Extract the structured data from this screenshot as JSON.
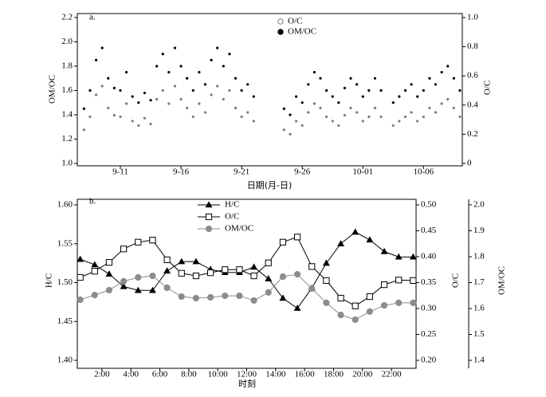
{
  "chart_data": [
    {
      "type": "scatter",
      "panel_label": "a.",
      "xlabel": "日期(月-日)",
      "ylabel": "OM/OC",
      "y2label": "O/C",
      "x": [
        8.0,
        8.5,
        9.0,
        9.5,
        10.0,
        10.5,
        11.0,
        11.5,
        12.0,
        12.5,
        13.0,
        13.5,
        14.0,
        14.5,
        15.0,
        15.5,
        16.0,
        16.5,
        17.0,
        17.5,
        18.0,
        18.5,
        19.0,
        19.5,
        20.0,
        20.5,
        21.0,
        21.5,
        22.0,
        24.5,
        25.0,
        25.5,
        26.0,
        26.5,
        27.0,
        27.5,
        28.0,
        28.5,
        29.0,
        29.5,
        30.0,
        30.5,
        31.0,
        31.5,
        32.0,
        32.5,
        33.5,
        34.0,
        34.5,
        35.0,
        35.5,
        36.0,
        36.5,
        37.0,
        37.5,
        38.0,
        38.5,
        39.0
      ],
      "xlim": [
        7.45,
        39.2
      ],
      "xticks": [
        {
          "value": 11,
          "label": "9-11"
        },
        {
          "value": 16,
          "label": "9-16"
        },
        {
          "value": 21,
          "label": "9-21"
        },
        {
          "value": 26,
          "label": "9-26"
        },
        {
          "value": 31,
          "label": "10-01"
        },
        {
          "value": 36,
          "label": "10-06"
        }
      ],
      "ylim": [
        1.0,
        2.2
      ],
      "yticks": [
        {
          "value": 1.0,
          "label": "1.0"
        },
        1.2,
        1.4,
        1.6,
        1.8,
        {
          "value": 2.0,
          "label": "2.0"
        },
        2.2
      ],
      "y2lim": [
        0,
        1.0
      ],
      "y2ticks": [
        0,
        0.2,
        0.4,
        0.6,
        0.8,
        {
          "value": 1.0,
          "label": "1.0"
        }
      ],
      "series": [
        {
          "name": "O/C",
          "axis": "y2",
          "color": "#7a7a7a",
          "marker": "circle",
          "legend_marker_fill": "none",
          "values": [
            0.23,
            0.32,
            0.47,
            0.53,
            0.38,
            0.33,
            0.32,
            0.41,
            0.29,
            0.26,
            0.31,
            0.27,
            0.44,
            0.5,
            0.41,
            0.53,
            0.44,
            0.38,
            0.32,
            0.41,
            0.35,
            0.47,
            0.53,
            0.44,
            0.5,
            0.38,
            0.32,
            0.35,
            0.29,
            0.23,
            0.2,
            0.29,
            0.26,
            0.35,
            0.41,
            0.38,
            0.32,
            0.29,
            0.26,
            0.33,
            0.38,
            0.35,
            0.29,
            0.32,
            0.38,
            0.32,
            0.26,
            0.29,
            0.32,
            0.35,
            0.29,
            0.32,
            0.38,
            0.35,
            0.41,
            0.44,
            0.38,
            0.32
          ]
        },
        {
          "name": "OM/OC",
          "axis": "y",
          "color": "#000000",
          "marker": "circle",
          "legend_marker_fill": "#000000",
          "values": [
            1.45,
            1.6,
            1.85,
            1.95,
            1.7,
            1.62,
            1.6,
            1.75,
            1.55,
            1.5,
            1.58,
            1.52,
            1.8,
            1.9,
            1.75,
            1.95,
            1.8,
            1.7,
            1.6,
            1.75,
            1.65,
            1.85,
            1.95,
            1.8,
            1.9,
            1.7,
            1.6,
            1.65,
            1.55,
            1.45,
            1.4,
            1.55,
            1.5,
            1.65,
            1.75,
            1.7,
            1.6,
            1.55,
            1.5,
            1.62,
            1.7,
            1.65,
            1.55,
            1.6,
            1.7,
            1.6,
            1.5,
            1.55,
            1.6,
            1.65,
            1.55,
            1.6,
            1.7,
            1.65,
            1.75,
            1.8,
            1.7,
            1.6
          ]
        }
      ]
    },
    {
      "type": "line",
      "panel_label": "b.",
      "xlabel": "时刻",
      "ylabel": "H/C",
      "y2label": "O/C",
      "y3label": "OM/OC",
      "x": [
        0.5,
        1.5,
        2.5,
        3.5,
        4.5,
        5.5,
        6.5,
        7.5,
        8.5,
        9.5,
        10.5,
        11.5,
        12.5,
        13.5,
        14.5,
        15.5,
        16.5,
        17.5,
        18.5,
        19.5,
        20.5,
        21.5,
        22.5,
        23.5
      ],
      "xlim": [
        0.3,
        23.7
      ],
      "xticks": [
        {
          "value": 2,
          "label": "2:00"
        },
        {
          "value": 4,
          "label": "4:00"
        },
        {
          "value": 6,
          "label": "6:00"
        },
        {
          "value": 8,
          "label": "8:00"
        },
        {
          "value": 10,
          "label": "10:00"
        },
        {
          "value": 12,
          "label": "12:00"
        },
        {
          "value": 14,
          "label": "14:00"
        },
        {
          "value": 16,
          "label": "16:00"
        },
        {
          "value": 18,
          "label": "18:00"
        },
        {
          "value": 20,
          "label": "20:00"
        },
        {
          "value": 22,
          "label": "22:00"
        }
      ],
      "ylim": [
        1.4,
        1.6
      ],
      "yticks": [
        {
          "value": 1.4,
          "label": "1.40"
        },
        1.45,
        {
          "value": 1.5,
          "label": "1.50"
        },
        1.55,
        {
          "value": 1.6,
          "label": "1.60"
        }
      ],
      "y2lim": [
        0.2,
        0.5
      ],
      "y2ticks": [
        {
          "value": 0.2,
          "label": "0.20"
        },
        0.25,
        {
          "value": 0.3,
          "label": "0.30"
        },
        0.35,
        {
          "value": 0.4,
          "label": "0.40"
        },
        0.45,
        {
          "value": 0.5,
          "label": "0.50"
        }
      ],
      "y3lim": [
        1.4,
        2.0
      ],
      "y3ticks": [
        1.4,
        1.5,
        1.6,
        1.7,
        1.8,
        1.9,
        {
          "value": 2.0,
          "label": "2.0"
        }
      ],
      "series": [
        {
          "name": "H/C",
          "axis": "y",
          "color": "#000000",
          "marker": "triangle",
          "marker_fill": "#000000",
          "values": [
            1.53,
            1.523,
            1.511,
            1.495,
            1.49,
            1.49,
            1.515,
            1.527,
            1.527,
            1.517,
            1.513,
            1.513,
            1.52,
            1.505,
            1.48,
            1.467,
            1.493,
            1.525,
            1.55,
            1.565,
            1.555,
            1.54,
            1.533,
            1.533
          ]
        },
        {
          "name": "O/C",
          "axis": "y2",
          "color": "#000000",
          "marker": "square",
          "marker_fill": "#ffffff",
          "values": [
            0.36,
            0.372,
            0.389,
            0.415,
            0.428,
            0.432,
            0.394,
            0.368,
            0.363,
            0.369,
            0.375,
            0.375,
            0.363,
            0.388,
            0.428,
            0.438,
            0.381,
            0.354,
            0.32,
            0.305,
            0.323,
            0.346,
            0.355,
            0.354
          ]
        },
        {
          "name": "OM/OC",
          "axis": "y3",
          "color": "#8c8c8c",
          "marker": "circle",
          "marker_fill": "#8c8c8c",
          "values": [
            1.634,
            1.652,
            1.671,
            1.705,
            1.72,
            1.726,
            1.68,
            1.646,
            1.64,
            1.643,
            1.649,
            1.649,
            1.631,
            1.662,
            1.723,
            1.732,
            1.677,
            1.622,
            1.575,
            1.557,
            1.588,
            1.612,
            1.622,
            1.622
          ]
        }
      ]
    }
  ]
}
